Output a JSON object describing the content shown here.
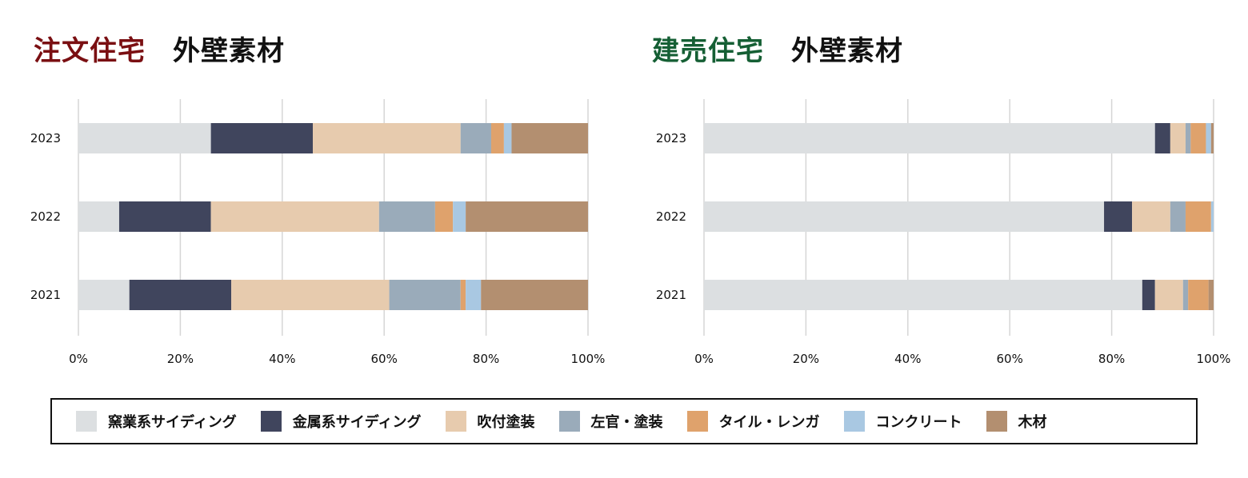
{
  "titles": {
    "left": {
      "accent": "注文住宅",
      "main": "外壁素材",
      "accent_color": "#7a0f12"
    },
    "right": {
      "accent": "建売住宅",
      "main": "外壁素材",
      "accent_color": "#155f34"
    }
  },
  "legend": [
    {
      "label": "窯業系サイディング",
      "color": "#dcdfe1"
    },
    {
      "label": "金属系サイディング",
      "color": "#40455d"
    },
    {
      "label": "吹付塗装",
      "color": "#e7cbae"
    },
    {
      "label": "左官・塗装",
      "color": "#9aabba"
    },
    {
      "label": "タイル・レンガ",
      "color": "#dfa26c"
    },
    {
      "label": "コンクリート",
      "color": "#a9c8e2"
    },
    {
      "label": "木材",
      "color": "#b38f70"
    }
  ],
  "chart_data": [
    {
      "type": "bar",
      "orientation": "horizontal",
      "stacked": true,
      "title": "注文住宅　外壁素材",
      "categories": [
        "2023",
        "2022",
        "2021"
      ],
      "xlim": [
        0,
        100
      ],
      "xticks": [
        "0%",
        "20%",
        "40%",
        "60%",
        "80%",
        "100%"
      ],
      "series": [
        {
          "name": "窯業系サイディング",
          "values": [
            26,
            8,
            10
          ]
        },
        {
          "name": "金属系サイディング",
          "values": [
            20,
            18,
            20
          ]
        },
        {
          "name": "吹付塗装",
          "values": [
            29,
            33,
            31
          ]
        },
        {
          "name": "左官・塗装",
          "values": [
            6,
            11,
            14
          ]
        },
        {
          "name": "タイル・レンガ",
          "values": [
            2.5,
            3.5,
            1
          ]
        },
        {
          "name": "コンクリート",
          "values": [
            1.5,
            2.5,
            3
          ]
        },
        {
          "name": "木材",
          "values": [
            15,
            24,
            21
          ]
        }
      ]
    },
    {
      "type": "bar",
      "orientation": "horizontal",
      "stacked": true,
      "title": "建売住宅　外壁素材",
      "categories": [
        "2023",
        "2022",
        "2021"
      ],
      "xlim": [
        0,
        100
      ],
      "xticks": [
        "0%",
        "20%",
        "40%",
        "60%",
        "80%",
        "100%"
      ],
      "series": [
        {
          "name": "窯業系サイディング",
          "values": [
            88.5,
            78.5,
            86
          ]
        },
        {
          "name": "金属系サイディング",
          "values": [
            3,
            5.5,
            2.5
          ]
        },
        {
          "name": "吹付塗装",
          "values": [
            3,
            7.5,
            5.5
          ]
        },
        {
          "name": "左官・塗装",
          "values": [
            1,
            3,
            1
          ]
        },
        {
          "name": "タイル・レンガ",
          "values": [
            3,
            5,
            4
          ]
        },
        {
          "name": "コンクリート",
          "values": [
            1,
            0.5,
            0
          ]
        },
        {
          "name": "木材",
          "values": [
            0.5,
            0,
            1
          ]
        }
      ]
    }
  ]
}
